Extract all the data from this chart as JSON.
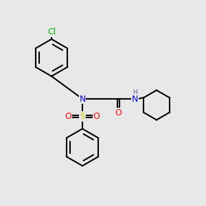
{
  "bg_color": "#e8e8e8",
  "bond_color": "#000000",
  "bond_lw": 1.5,
  "atom_colors": {
    "N": "#0000ff",
    "O": "#ff0000",
    "S": "#cccc00",
    "Cl": "#00bb00",
    "H": "#555577",
    "C": "#000000"
  },
  "font_size": 9,
  "font_size_small": 7.5
}
